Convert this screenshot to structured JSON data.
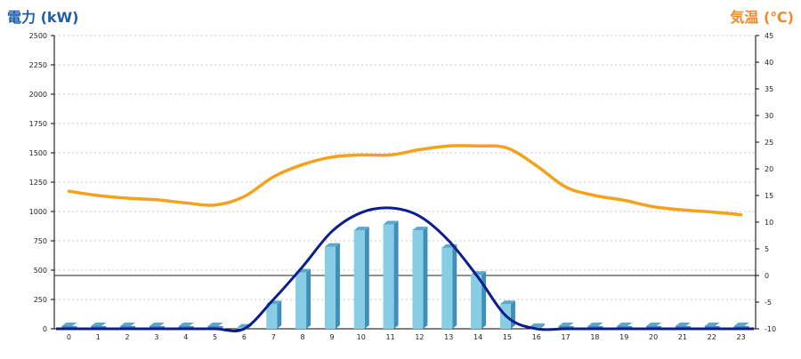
{
  "chart_data": {
    "type": "bar",
    "categories": [
      "0",
      "1",
      "2",
      "3",
      "4",
      "5",
      "6",
      "7",
      "8",
      "9",
      "10",
      "11",
      "12",
      "13",
      "14",
      "15",
      "16",
      "17",
      "18",
      "19",
      "20",
      "21",
      "22",
      "23"
    ],
    "series": [
      {
        "name": "電力 (kW)",
        "type": "bar",
        "axis": "left",
        "values": [
          0,
          0,
          0,
          0,
          0,
          0,
          10,
          210,
          480,
          700,
          840,
          890,
          840,
          690,
          460,
          210,
          15,
          0,
          0,
          0,
          0,
          0,
          0,
          0
        ]
      },
      {
        "type": "line",
        "axis": "left",
        "values": [
          0,
          0,
          0,
          0,
          0,
          0,
          0,
          250,
          530,
          830,
          990,
          1030,
          960,
          750,
          440,
          100,
          0,
          0,
          0,
          0,
          0,
          0,
          0,
          0
        ]
      },
      {
        "type": "line",
        "axis": "right",
        "values": [
          15.8,
          15.0,
          14.5,
          14.2,
          13.6,
          13.2,
          14.8,
          18.5,
          20.8,
          22.2,
          22.6,
          22.6,
          23.6,
          24.3,
          24.3,
          23.9,
          20.6,
          16.6,
          15.0,
          14.1,
          12.9,
          12.3,
          11.9,
          11.4
        ]
      }
    ],
    "y_left": {
      "label": "電力 (kW)",
      "ylim": [
        0,
        2500
      ],
      "ticks": [
        "0",
        "250",
        "500",
        "750",
        "1000",
        "1250",
        "1500",
        "1750",
        "2000",
        "2250",
        "2500"
      ]
    },
    "y_right": {
      "label": "気温 (℃)",
      "ylim": [
        -10,
        45
      ],
      "ticks": [
        "-10",
        "-5",
        "0",
        "5",
        "10",
        "15",
        "20",
        "25",
        "30",
        "35",
        "40",
        "45"
      ]
    },
    "grid": true,
    "colors": {
      "bar": "#87cde6",
      "bar_top": "#5aa8cf",
      "bar_side": "#3f8fb8",
      "solar_line": "#0b1e8c",
      "temp_line": "#f5a11c",
      "zero_bar": "#4b86c6",
      "left_title": "#1f5fa8",
      "right_title": "#f08a24"
    }
  }
}
